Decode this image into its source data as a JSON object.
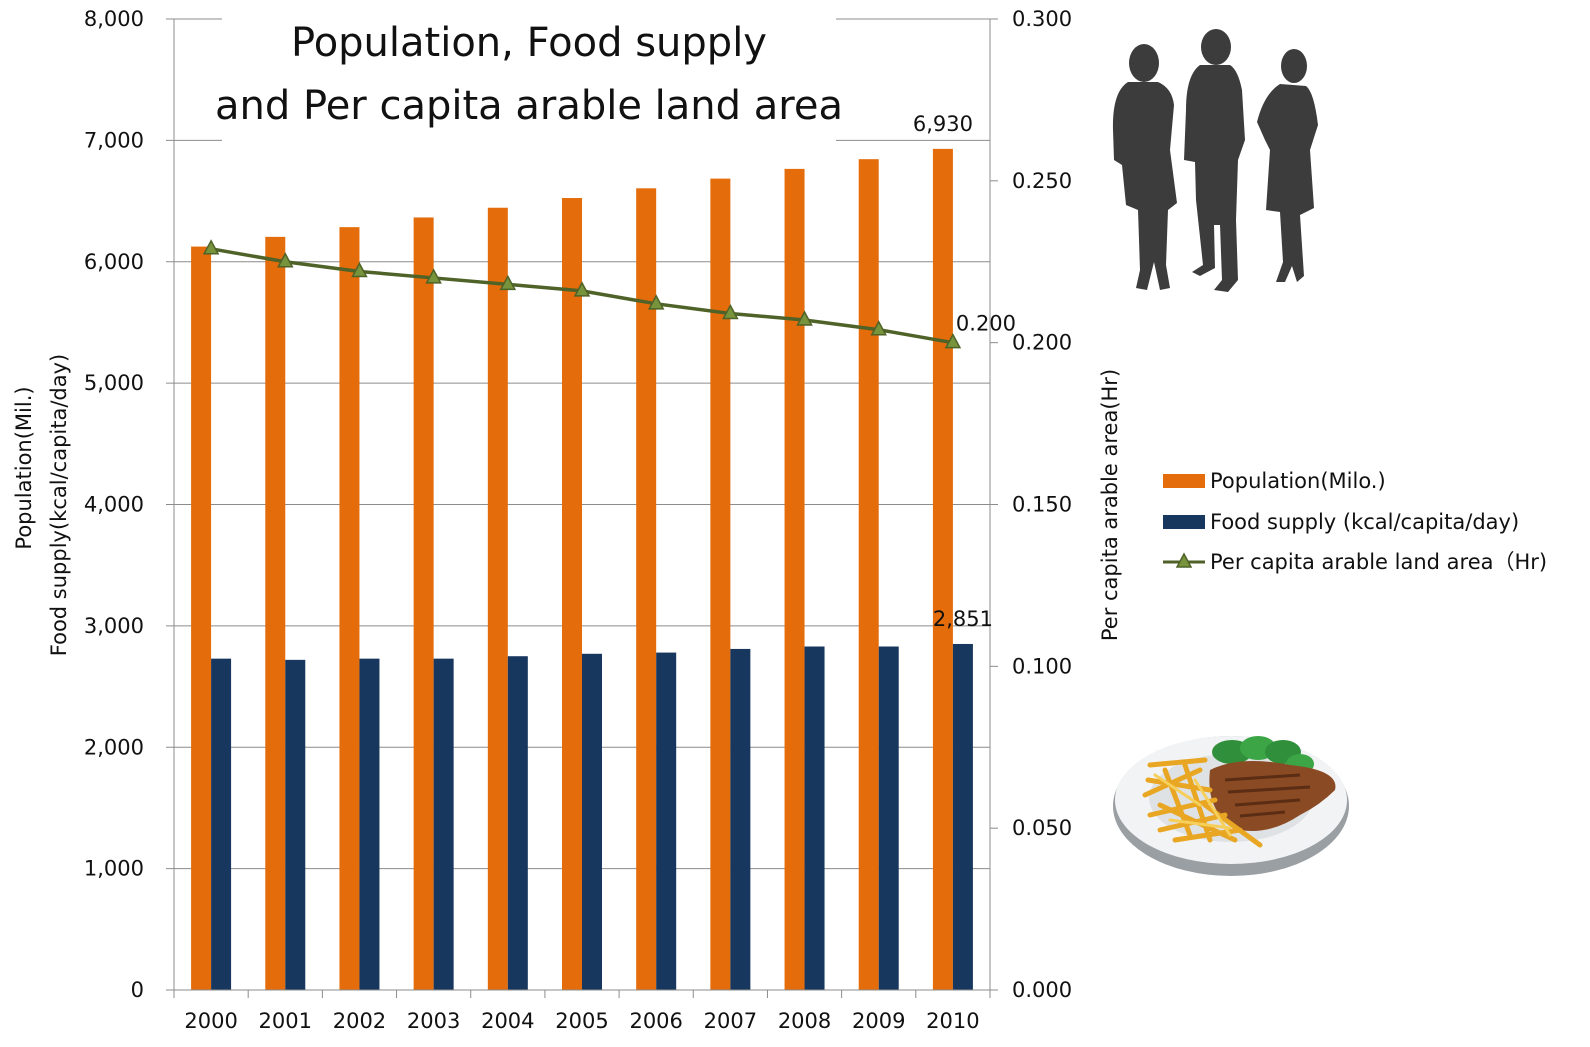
{
  "chart_data": {
    "type": "bar",
    "title_line1": "Population, Food supply",
    "title_line2": "and Per capita arable land area",
    "categories": [
      "2000",
      "2001",
      "2002",
      "2003",
      "2004",
      "2005",
      "2006",
      "2007",
      "2008",
      "2009",
      "2010"
    ],
    "y_left": {
      "label_line1": "Population(Mil.)",
      "label_line2": "Food supply(kcal/capita/day)",
      "range": [
        0,
        8000
      ],
      "ticks": [
        "0",
        "1,000",
        "2,000",
        "3,000",
        "4,000",
        "5,000",
        "6,000",
        "7,000",
        "8,000"
      ]
    },
    "y_right": {
      "label": "Per capita arable area(Hr)",
      "range": [
        0,
        0.3
      ],
      "ticks": [
        "0.000",
        "0.050",
        "0.100",
        "0.150",
        "0.200",
        "0.250",
        "0.300"
      ]
    },
    "gridlines": true,
    "legend_position": "right",
    "series": [
      {
        "name": "Population(Milo.)",
        "kind": "bar",
        "axis": "left",
        "color": "#e46c0a",
        "values": [
          6125,
          6205,
          6285,
          6365,
          6445,
          6525,
          6605,
          6685,
          6765,
          6845,
          6930
        ],
        "end_label": "6,930"
      },
      {
        "name": "Food supply (kcal/capita/day)",
        "kind": "bar",
        "axis": "left",
        "color": "#17375e",
        "values": [
          2730,
          2720,
          2730,
          2730,
          2750,
          2770,
          2780,
          2810,
          2830,
          2830,
          2851
        ],
        "end_label": "2,851"
      },
      {
        "name": "Per capita arable land area（Hr)",
        "kind": "line",
        "axis": "right",
        "color": "#4f6228",
        "marker": "triangle",
        "marker_color": "#77933c",
        "values": [
          0.229,
          0.225,
          0.222,
          0.22,
          0.218,
          0.216,
          0.212,
          0.209,
          0.207,
          0.204,
          0.2
        ],
        "end_label": "0.200"
      }
    ]
  },
  "decorations": {
    "people_icon": "people-silhouette-icon",
    "food_icon": "steak-plate-icon"
  }
}
